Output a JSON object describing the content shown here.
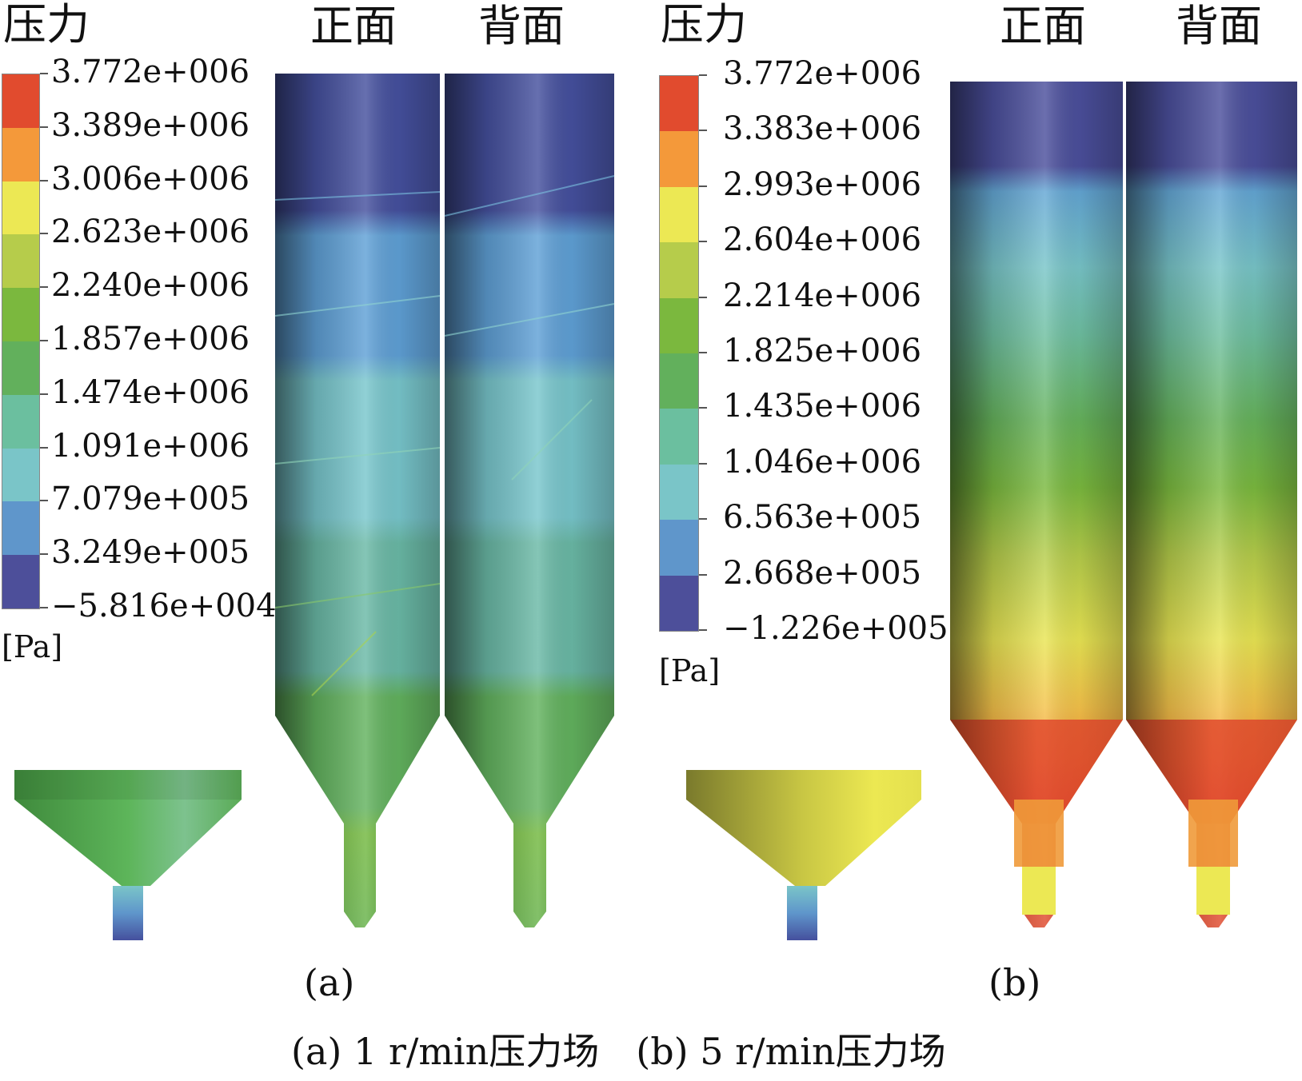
{
  "panels": [
    {
      "id": "a",
      "legend_title": "压力",
      "front_label": "正面",
      "back_label": "背面",
      "unit": "[Pa]",
      "ticks": [
        "3.772e+006",
        "3.389e+006",
        "3.006e+006",
        "2.623e+006",
        "2.240e+006",
        "1.857e+006",
        "1.474e+006",
        "1.091e+006",
        "7.079e+005",
        "3.249e+005",
        "−5.816e+004"
      ],
      "letter": "(a)"
    },
    {
      "id": "b",
      "legend_title": "压力",
      "front_label": "正面",
      "back_label": "背面",
      "unit": "[Pa]",
      "ticks": [
        "3.772e+006",
        "3.383e+006",
        "2.993e+006",
        "2.604e+006",
        "2.214e+006",
        "1.825e+006",
        "1.435e+006",
        "1.046e+006",
        "6.563e+005",
        "2.668e+005",
        "−1.226e+005"
      ],
      "letter": "(b)"
    }
  ],
  "colormap": [
    "#e14b2e",
    "#f4993a",
    "#ece854",
    "#b6cc4b",
    "#7bb83e",
    "#62b05c",
    "#6bbf9f",
    "#7ac5c8",
    "#5f96cb",
    "#4d4f9a"
  ],
  "caption": "(a) 1 r/min压力场　(b) 5 r/min压力场"
}
